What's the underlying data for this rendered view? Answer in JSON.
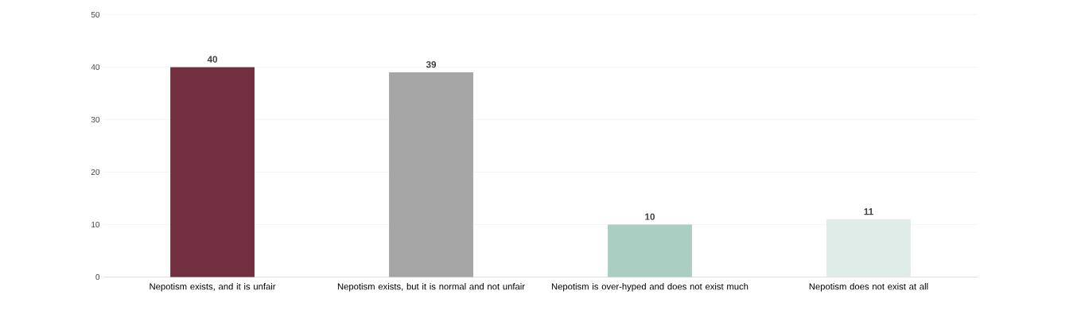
{
  "chart_data": {
    "type": "bar",
    "categories": [
      "Nepotism exists, and it is unfair",
      "Nepotism exists, but it is normal and not unfair",
      "Nepotism is over-hyped and does not exist much",
      "Nepotism does not exist at all"
    ],
    "values": [
      40,
      39,
      10,
      11
    ],
    "colors": [
      "#722f3f",
      "#a6a6a6",
      "#aacfc2",
      "#dfece7"
    ],
    "ylim": [
      0,
      50
    ],
    "yticks": [
      0,
      10,
      20,
      30,
      40,
      50
    ],
    "grid": "y",
    "data_labels": true
  }
}
